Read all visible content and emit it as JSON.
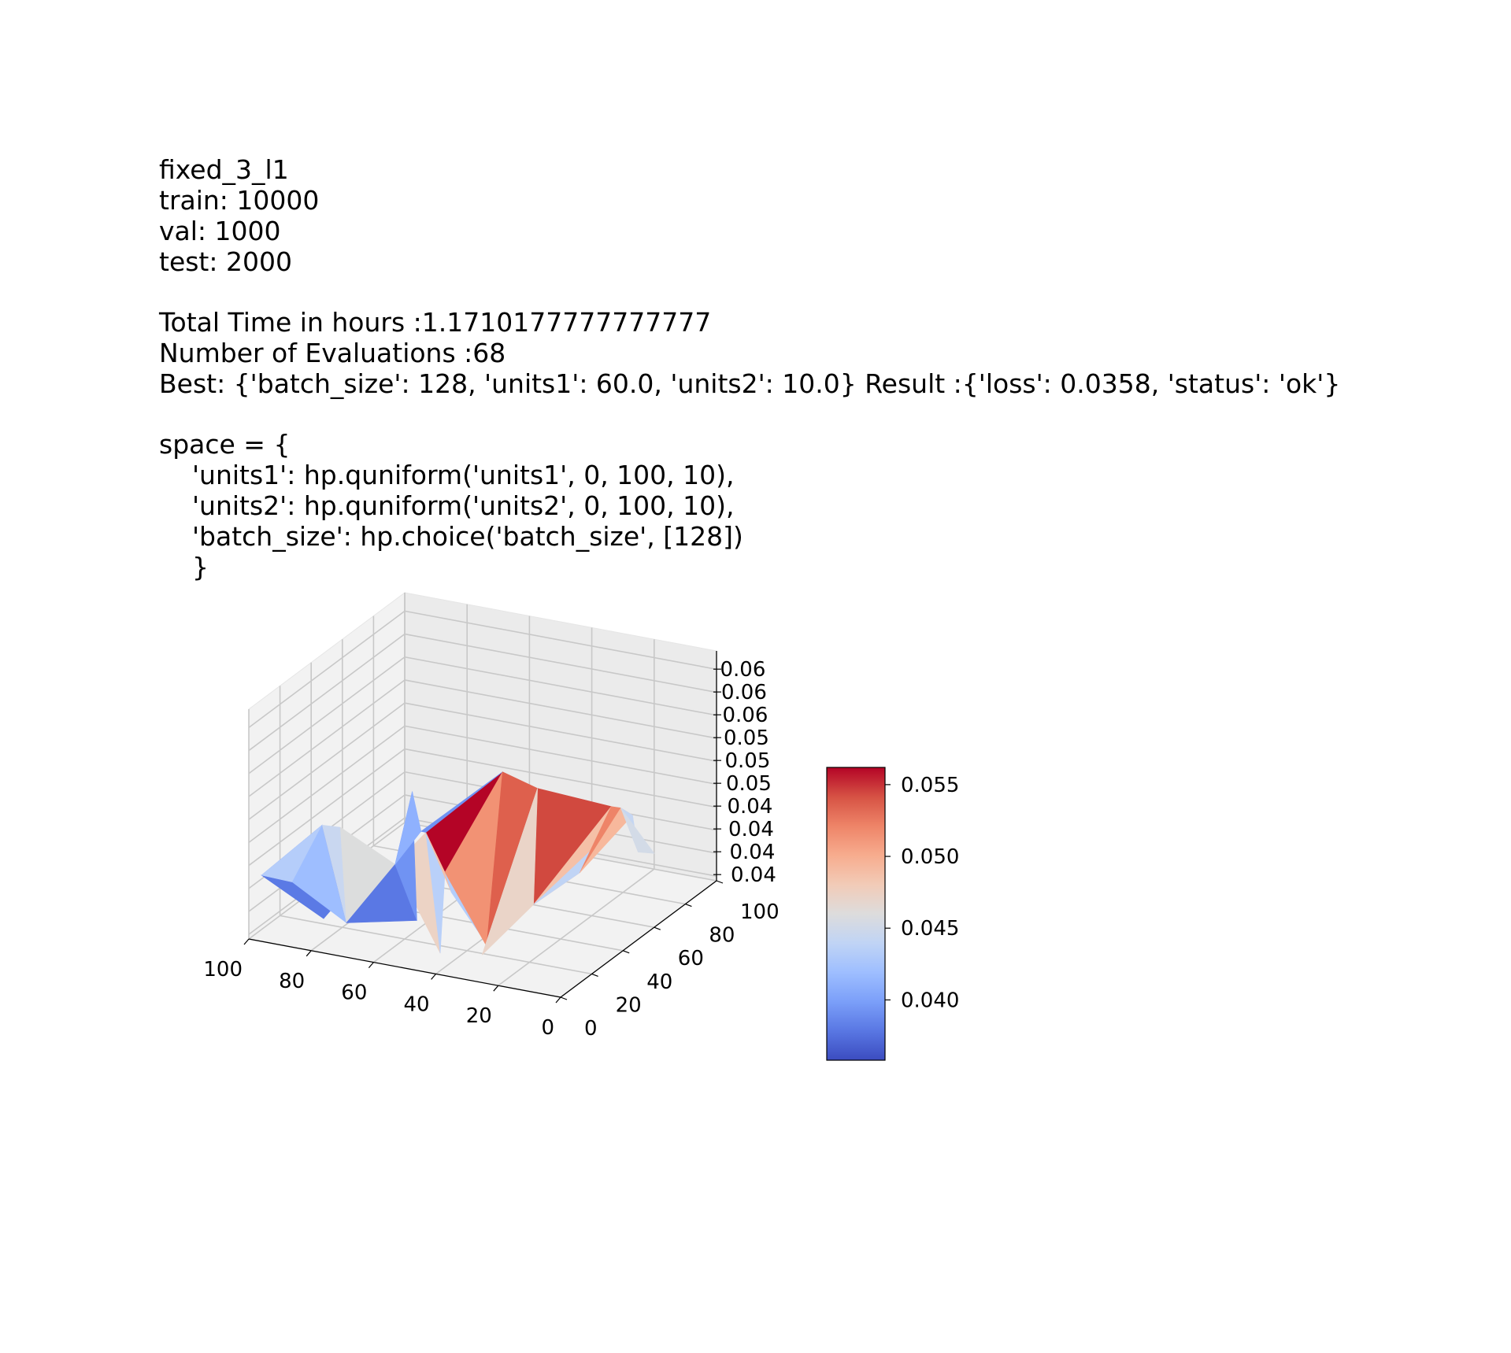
{
  "header": {
    "title": "fixed_3_l1",
    "train": "train: 10000",
    "val": "val: 1000",
    "test": "test: 2000",
    "total_time": "Total Time in hours :1.1710177777777777",
    "evaluations": "Number of Evaluations :68",
    "best": "Best: {'batch_size': 128, 'units1': 60.0, 'units2': 10.0} Result :{'loss': 0.0358, 'status': 'ok'}"
  },
  "space": [
    "space = {",
    "    'units1': hp.quniform('units1', 0, 100, 10),",
    "    'units2': hp.quniform('units2', 0, 100, 10),",
    "    'batch_size': hp.choice('batch_size', [128])",
    "    }"
  ],
  "chart_data": {
    "type": "surface3d",
    "colormap": "coolwarm",
    "x_axis": {
      "label": "",
      "ticks": [
        "100",
        "80",
        "60",
        "40",
        "20",
        "0"
      ],
      "range": [
        0,
        100
      ]
    },
    "y_axis": {
      "label": "",
      "ticks": [
        "0",
        "20",
        "40",
        "60",
        "80",
        "100"
      ],
      "range": [
        0,
        100
      ]
    },
    "z_axis": {
      "label": "",
      "ticks": [
        "0.04",
        "0.04",
        "0.04",
        "0.04",
        "0.05",
        "0.05",
        "0.05",
        "0.06",
        "0.06",
        "0.06"
      ],
      "range": [
        0.036,
        0.062
      ]
    },
    "colorbar": {
      "ticks": [
        "0.040",
        "0.045",
        "0.050",
        "0.055"
      ],
      "range": [
        0.0358,
        0.0562
      ]
    },
    "points": [
      {
        "units1": 90,
        "units2": 10,
        "loss": 0.038
      },
      {
        "units1": 80,
        "units2": 30,
        "loss": 0.044
      },
      {
        "units1": 70,
        "units2": 10,
        "loss": 0.039
      },
      {
        "units1": 70,
        "units2": 50,
        "loss": 0.047
      },
      {
        "units1": 60,
        "units2": 10,
        "loss": 0.0358
      },
      {
        "units1": 60,
        "units2": 40,
        "loss": 0.04
      },
      {
        "units1": 50,
        "units2": 20,
        "loss": 0.048
      },
      {
        "units1": 50,
        "units2": 60,
        "loss": 0.042
      },
      {
        "units1": 40,
        "units2": 10,
        "loss": 0.041
      },
      {
        "units1": 40,
        "units2": 40,
        "loss": 0.05
      },
      {
        "units1": 30,
        "units2": 30,
        "loss": 0.044
      },
      {
        "units1": 30,
        "units2": 70,
        "loss": 0.0562
      },
      {
        "units1": 20,
        "units2": 20,
        "loss": 0.042
      },
      {
        "units1": 20,
        "units2": 50,
        "loss": 0.054
      },
      {
        "units1": 10,
        "units2": 40,
        "loss": 0.047
      },
      {
        "units1": 10,
        "units2": 90,
        "loss": 0.053
      },
      {
        "units1": 0,
        "units2": 60,
        "loss": 0.044
      },
      {
        "units1": 0,
        "units2": 100,
        "loss": 0.051
      }
    ],
    "faces": [
      {
        "v": [
          [
            97.37,
            2.92,
            0.043
          ],
          [
            83.85,
            14.79,
            0.048
          ],
          [
            84.78,
            17.53,
            0.037
          ]
        ],
        "color": "#6688ee"
      },
      {
        "v": [
          [
            97.37,
            2.92,
            0.043
          ],
          [
            88.94,
            44.86,
            0.037
          ],
          [
            84.78,
            17.53,
            0.037
          ]
        ],
        "color": "#5b7ae5"
      },
      {
        "v": [
          [
            97.37,
            2.92,
            0.043
          ],
          [
            83.85,
            14.79,
            0.048
          ],
          [
            87.11,
            2.17,
            0.043
          ]
        ],
        "color": "#b5cdfa"
      },
      {
        "v": [
          [
            83.85,
            14.79,
            0.048
          ],
          [
            87.11,
            2.17,
            0.043
          ],
          [
            71.42,
            5.47,
            0.039
          ]
        ],
        "color": "#9ebeff"
      },
      {
        "v": [
          [
            83.85,
            14.79,
            0.048
          ],
          [
            71.42,
            5.47,
            0.039
          ],
          [
            69.43,
            31.1,
            0.037
          ]
        ],
        "color": "#5977e3"
      },
      {
        "v": [
          [
            83.85,
            14.79,
            0.048
          ],
          [
            78.44,
            15.62,
            0.048
          ],
          [
            71.42,
            5.47,
            0.039
          ]
        ],
        "color": "#c9d7f0"
      },
      {
        "v": [
          [
            78.44,
            15.62,
            0.048
          ],
          [
            71.42,
            5.47,
            0.039
          ],
          [
            54.69,
            3.22,
            0.047
          ]
        ],
        "color": "#dcdddd"
      },
      {
        "v": [
          [
            71.42,
            5.47,
            0.039
          ],
          [
            54.69,
            3.22,
            0.047
          ],
          [
            60.2,
            28.17,
            0.037
          ]
        ],
        "color": "#5a78e4"
      },
      {
        "v": [
          [
            54.69,
            3.22,
            0.047
          ],
          [
            51.72,
            16.99,
            0.049
          ],
          [
            39.94,
            2.64,
            0.038
          ]
        ],
        "color": "#ecd3c5"
      },
      {
        "v": [
          [
            54.69,
            3.22,
            0.047
          ],
          [
            60.2,
            28.17,
            0.037
          ],
          [
            63.19,
            31.22,
            0.051
          ]
        ],
        "color": "#7093f3"
      },
      {
        "v": [
          [
            54.69,
            3.22,
            0.047
          ],
          [
            63.19,
            31.22,
            0.051
          ],
          [
            62.41,
            35.33,
            0.046
          ]
        ],
        "color": "#8fb1fe"
      },
      {
        "v": [
          [
            51.72,
            16.99,
            0.049
          ],
          [
            39.94,
            2.64,
            0.038
          ],
          [
            42.21,
            10.23,
            0.046
          ]
        ],
        "color": "#b9d0f9"
      },
      {
        "v": [
          [
            51.72,
            16.99,
            0.049
          ],
          [
            42.21,
            10.23,
            0.046
          ],
          [
            31.55,
            25.9,
            0.056
          ]
        ],
        "color": "#b40426"
      },
      {
        "v": [
          [
            51.72,
            16.99,
            0.049
          ],
          [
            62.41,
            35.33,
            0.046
          ],
          [
            31.55,
            25.9,
            0.056
          ]
        ],
        "color": "#6f92f3"
      },
      {
        "v": [
          [
            51.72,
            16.99,
            0.049
          ],
          [
            42.21,
            10.23,
            0.046
          ],
          [
            36.69,
            3.31,
            0.045
          ]
        ],
        "color": "#f5c0a7"
      },
      {
        "v": [
          [
            42.21,
            10.23,
            0.046
          ],
          [
            36.69,
            3.31,
            0.045
          ],
          [
            24.08,
            1.57,
            0.04
          ]
        ],
        "color": "#b3cdfb"
      },
      {
        "v": [
          [
            42.21,
            10.23,
            0.046
          ],
          [
            30.41,
            13.37,
            0.038
          ],
          [
            31.55,
            25.9,
            0.056
          ]
        ],
        "color": "#f29274"
      },
      {
        "v": [
          [
            30.41,
            13.37,
            0.038
          ],
          [
            31.55,
            25.9,
            0.056
          ],
          [
            19.99,
            25.17,
            0.055
          ]
        ],
        "color": "#de604d"
      },
      {
        "v": [
          [
            30.41,
            13.37,
            0.038
          ],
          [
            24.08,
            1.57,
            0.04
          ],
          [
            28.6,
            6.86,
            0.038
          ]
        ],
        "color": "#e2dad5"
      },
      {
        "v": [
          [
            30.41,
            13.37,
            0.038
          ],
          [
            28.6,
            6.86,
            0.038
          ],
          [
            19.99,
            25.17,
            0.055
          ]
        ],
        "color": "#d8dce2"
      },
      {
        "v": [
          [
            19.99,
            25.17,
            0.055
          ],
          [
            17.53,
            17.7,
            0.043
          ],
          [
            3.94,
            40.36,
            0.052
          ]
        ],
        "color": "#d1493f"
      },
      {
        "v": [
          [
            19.99,
            25.17,
            0.055
          ],
          [
            17.53,
            17.7,
            0.043
          ],
          [
            28.6,
            6.86,
            0.038
          ]
        ],
        "color": "#ead4c8"
      },
      {
        "v": [
          [
            17.53,
            17.7,
            0.043
          ],
          [
            3.94,
            40.36,
            0.052
          ],
          [
            10.53,
            33.4,
            0.045
          ]
        ],
        "color": "#f5c0a7"
      },
      {
        "v": [
          [
            17.53,
            17.7,
            0.043
          ],
          [
            10.53,
            33.4,
            0.045
          ],
          [
            13.39,
            57.27,
            0.046
          ]
        ],
        "color": "#c0d4f5"
      },
      {
        "v": [
          [
            10.53,
            33.4,
            0.045
          ],
          [
            3.94,
            40.36,
            0.052
          ],
          [
            4.03,
            46.68,
            0.051
          ]
        ],
        "color": "#ee8468"
      },
      {
        "v": [
          [
            10.53,
            33.4,
            0.045
          ],
          [
            4.03,
            46.68,
            0.051
          ],
          [
            -7.54,
            31.07,
            0.053
          ]
        ],
        "color": "#f7b89c"
      },
      {
        "v": [
          [
            4.03,
            46.68,
            0.051
          ],
          [
            -7.54,
            31.07,
            0.053
          ],
          [
            -3.45,
            42.87,
            0.047
          ]
        ],
        "color": "#c5d6f2"
      },
      {
        "v": [
          [
            4.03,
            46.68,
            0.051
          ],
          [
            -3.45,
            42.87,
            0.047
          ],
          [
            -1.97,
            56.12,
            0.045
          ]
        ],
        "color": "#d3dbe7"
      }
    ]
  }
}
